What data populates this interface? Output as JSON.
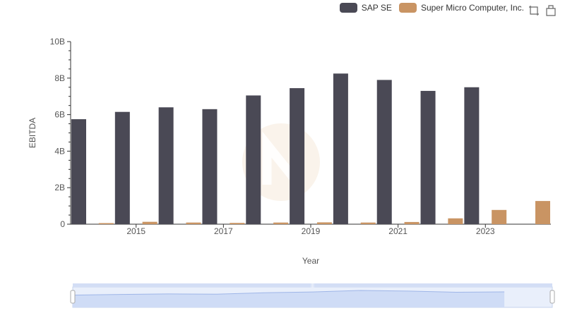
{
  "legend": {
    "items": [
      {
        "name": "SAP SE",
        "color": "#4a4955"
      },
      {
        "name": "Super Micro Computer, Inc.",
        "color": "#c99463"
      }
    ]
  },
  "toolbar": {
    "icons": [
      "zoom-icon",
      "restore-icon"
    ]
  },
  "chart_data": {
    "type": "bar",
    "xlabel": "Year",
    "ylabel": "EBITDA",
    "ylim": [
      0,
      10000000000
    ],
    "y_ticks": [
      "0",
      "2B",
      "4B",
      "6B",
      "8B",
      "10B"
    ],
    "x_tick_labels": [
      "2015",
      "2017",
      "2019",
      "2021",
      "2023"
    ],
    "categories": [
      "2014",
      "2015",
      "2016",
      "2017",
      "2018",
      "2019",
      "2020",
      "2021",
      "2022",
      "2023",
      "2024"
    ],
    "series": [
      {
        "name": "SAP SE",
        "color": "#4a4955",
        "values": [
          5750000000,
          6150000000,
          6400000000,
          6300000000,
          7050000000,
          7450000000,
          8250000000,
          7900000000,
          7300000000,
          7500000000,
          null
        ]
      },
      {
        "name": "Super Micro Computer, Inc.",
        "color": "#c99463",
        "values": [
          60000000,
          130000000,
          90000000,
          70000000,
          90000000,
          100000000,
          90000000,
          120000000,
          320000000,
          780000000,
          1270000000
        ]
      }
    ],
    "grid": false,
    "legend_position": "top-right",
    "dataZoom": {
      "start": 0,
      "end": 100
    }
  }
}
